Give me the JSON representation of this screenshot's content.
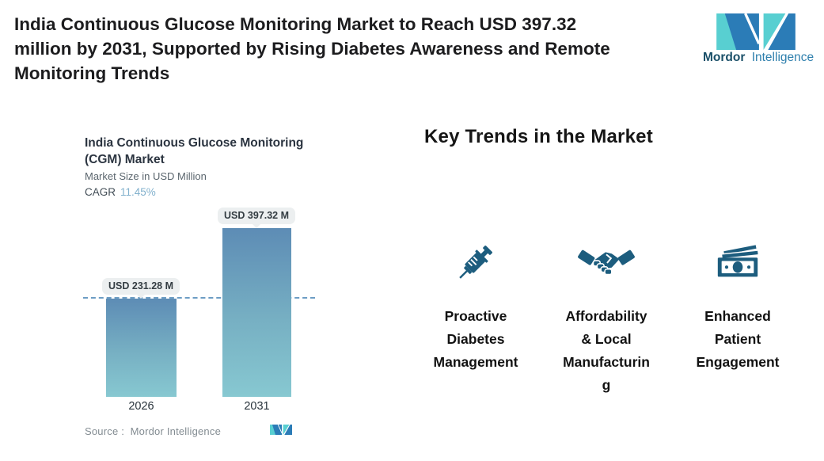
{
  "header": {
    "headline": "India Continuous Glucose Monitoring Market to Reach USD 397.32\nmillion by 2031, Supported by Rising Diabetes Awareness and Remote\nMonitoring Trends"
  },
  "logo": {
    "brand_bold": "Mordor",
    "brand_light": "Intelligence",
    "teal": "#58cfd1",
    "blue": "#2b7cb7"
  },
  "chart": {
    "title": "India Continuous Glucose Monitoring\n(CGM) Market",
    "subtitle": "Market Size in USD Million",
    "cagr_label": "CAGR",
    "cagr_value": "11.45%",
    "source": "Source :  Mordor Intelligence",
    "bars": [
      {
        "year": "2026",
        "label": "USD 231.28 M"
      },
      {
        "year": "2031",
        "label": "USD 397.32 M"
      }
    ]
  },
  "chart_data": {
    "type": "bar",
    "categories": [
      "2026",
      "2031"
    ],
    "values": [
      231.28,
      397.32
    ],
    "title": "India Continuous Glucose Monitoring (CGM) Market",
    "xlabel": "",
    "ylabel": "Market Size in USD Million",
    "cagr_percent": 11.45,
    "data_labels": [
      "USD 231.28 M",
      "USD 397.32 M"
    ],
    "ylim": [
      0,
      397.32
    ],
    "grid": false,
    "legend": "none",
    "bar_gradient": [
      "#5d8cb5",
      "#87c8d1"
    ],
    "reference_line": {
      "style": "dashed",
      "at_value": 231.28,
      "color": "#6d9dc4"
    }
  },
  "trends": {
    "heading": "Key Trends in the Market",
    "items": [
      {
        "icon": "syringe-icon",
        "label": "Proactive\nDiabetes\nManagement"
      },
      {
        "icon": "handshake-icon",
        "label": "Affordability\n& Local\nManufacturin\ng"
      },
      {
        "icon": "money-icon",
        "label": "Enhanced\nPatient\nEngagement"
      }
    ]
  },
  "colors": {
    "icon_blue": "#1d5d7e",
    "accent_light_blue": "#82b1cd"
  }
}
